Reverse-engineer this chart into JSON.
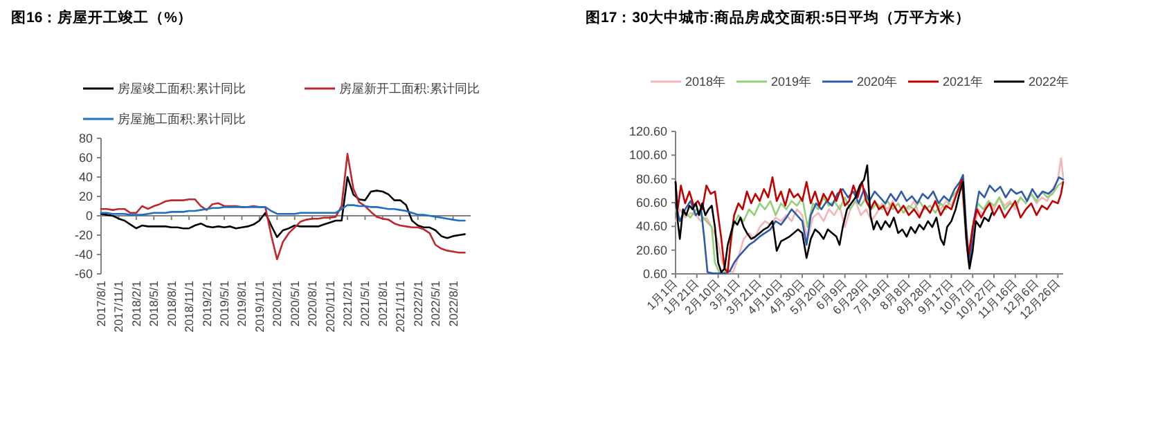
{
  "chart_data": [
    {
      "type": "line",
      "title": "图16：房屋开工竣工（%）",
      "legend": "top",
      "categories": [
        "2017/8/1",
        null,
        null,
        "2017/11/1",
        null,
        null,
        "2018/2/1",
        null,
        null,
        "2018/5/1",
        null,
        null,
        "2018/8/1",
        null,
        null,
        "2018/11/1",
        null,
        null,
        "2019/2/1",
        null,
        null,
        "2019/5/1",
        null,
        null,
        "2019/8/1",
        null,
        null,
        "2019/11/1",
        null,
        null,
        "2020/2/1",
        null,
        null,
        "2020/5/1",
        null,
        null,
        "2020/8/1",
        null,
        null,
        "2020/11/1",
        null,
        null,
        "2021/2/1",
        null,
        null,
        "2021/5/1",
        null,
        null,
        "2021/8/1",
        null,
        null,
        "2021/11/1",
        null,
        null,
        "2022/2/1",
        null,
        null,
        "2022/5/1",
        null,
        null,
        "2022/8/1",
        null,
        null
      ],
      "ylim": [
        -60,
        80
      ],
      "yticks": [
        -60,
        -40,
        -20,
        0,
        20,
        40,
        60,
        80
      ],
      "series": [
        {
          "name": "房屋竣工面积:累计同比",
          "color": "#000000",
          "values": [
            2,
            1,
            0,
            -3,
            -5,
            -9,
            -13,
            -10,
            -11,
            -11,
            -11,
            -11,
            -12,
            -12,
            -13,
            -13,
            -10,
            -8,
            -11,
            -12,
            -11,
            -12,
            -11,
            -13,
            -12,
            -11,
            -9,
            -5,
            3,
            -10,
            -22,
            -15,
            -13,
            -10,
            -11,
            -11,
            -11,
            -11,
            -9,
            -7,
            -5,
            -5,
            40,
            22,
            17,
            16,
            25,
            26,
            25,
            22,
            16,
            16,
            11,
            -5,
            -10,
            -12,
            -12,
            -15,
            -21,
            -23,
            -21,
            -20,
            -19
          ]
        },
        {
          "name": "房屋新开工面积:累计同比",
          "color": "#c0262d",
          "values": [
            7,
            7,
            6,
            7,
            7,
            3,
            3,
            10,
            7,
            10,
            12,
            15,
            16,
            16,
            16,
            17,
            17,
            10,
            6,
            12,
            13,
            10,
            10,
            10,
            9,
            9,
            10,
            9,
            9,
            -20,
            -45,
            -27,
            -18,
            -12,
            -6,
            -4,
            -3,
            -3,
            -2,
            -2,
            -1,
            10,
            64,
            28,
            14,
            10,
            4,
            -1,
            -3,
            -4,
            -8,
            -10,
            -11,
            -12,
            -12,
            -14,
            -18,
            -30,
            -34,
            -36,
            -37,
            -38,
            -38
          ]
        },
        {
          "name": "房屋施工面积:累计同比",
          "color": "#1f6fc0",
          "values": [
            3,
            3,
            2,
            2,
            2,
            1,
            1,
            1,
            2,
            3,
            3,
            3,
            4,
            4,
            4,
            5,
            5,
            6,
            7,
            8,
            8,
            9,
            9,
            9,
            9,
            9,
            9,
            9,
            9,
            5,
            2,
            2,
            2,
            2,
            3,
            3,
            3,
            3,
            3,
            3,
            3,
            7,
            11,
            11,
            10,
            10,
            9,
            9,
            8,
            7,
            7,
            6,
            5,
            3,
            1,
            1,
            0,
            -1,
            -2,
            -3,
            -4,
            -5,
            -5
          ]
        }
      ]
    },
    {
      "type": "line",
      "title": "图17：30大中城市:商品房成交面积:5日平均（万平方米）",
      "legend": "top",
      "xlim": [
        "--01-01",
        "--12-31"
      ],
      "xticks": [
        {
          "value": "--01-01",
          "label": "1月1日"
        },
        {
          "value": "--01-21",
          "label": "1月21日"
        },
        {
          "value": "--02-10",
          "label": "2月10日"
        },
        {
          "value": "--03-01",
          "label": "3月1日"
        },
        {
          "value": "--03-21",
          "label": "3月21日"
        },
        {
          "value": "--04-10",
          "label": "4月10日"
        },
        {
          "value": "--04-30",
          "label": "4月30日"
        },
        {
          "value": "--05-20",
          "label": "5月20日"
        },
        {
          "value": "--06-09",
          "label": "6月9日"
        },
        {
          "value": "--06-29",
          "label": "6月29日"
        },
        {
          "value": "--07-19",
          "label": "7月19日"
        },
        {
          "value": "--08-08",
          "label": "8月8日"
        },
        {
          "value": "--08-28",
          "label": "8月28日"
        },
        {
          "value": "--09-17",
          "label": "9月17日"
        },
        {
          "value": "--10-07",
          "label": "10月7日"
        },
        {
          "value": "--10-27",
          "label": "10月27日"
        },
        {
          "value": "--11-16",
          "label": "11月16日"
        },
        {
          "value": "--12-06",
          "label": "12月6日"
        },
        {
          "value": "--12-26",
          "label": "12月26日"
        }
      ],
      "ylim": [
        0.6,
        120.6
      ],
      "yticks": [
        {
          "value": 0.6,
          "label": "0.60"
        },
        {
          "value": 20.6,
          "label": "20.60"
        },
        {
          "value": 40.6,
          "label": "40.60"
        },
        {
          "value": 60.6,
          "label": "60.60"
        },
        {
          "value": 80.6,
          "label": "80.60"
        },
        {
          "value": 100.6,
          "label": "100.60"
        },
        {
          "value": 120.6,
          "label": "120.60"
        }
      ],
      "series": [
        {
          "name": "2018年",
          "color": "#f4b6b8",
          "x": [
            "--01-01",
            "--01-05",
            "--01-10",
            "--01-15",
            "--01-20",
            "--01-25",
            "--01-30",
            "--02-04",
            "--02-09",
            "--02-14",
            "--02-19",
            "--02-24",
            "--03-01",
            "--03-06",
            "--03-11",
            "--03-16",
            "--03-21",
            "--03-26",
            "--03-31",
            "--04-05",
            "--04-10",
            "--04-15",
            "--04-20",
            "--04-25",
            "--04-30",
            "--05-05",
            "--05-10",
            "--05-15",
            "--05-20",
            "--05-25",
            "--05-30",
            "--06-04",
            "--06-09",
            "--06-14",
            "--06-19",
            "--06-24",
            "--06-29",
            "--07-04",
            "--07-09",
            "--07-14",
            "--07-19",
            "--07-24",
            "--07-29",
            "--08-03",
            "--08-08",
            "--08-13",
            "--08-18",
            "--08-23",
            "--08-28",
            "--09-02",
            "--09-07",
            "--09-12",
            "--09-17",
            "--09-22",
            "--09-27",
            "--09-30",
            "--10-03",
            "--10-07",
            "--10-12",
            "--10-17",
            "--10-22",
            "--10-27",
            "--11-01",
            "--11-06",
            "--11-11",
            "--11-16",
            "--11-21",
            "--11-26",
            "--12-01",
            "--12-06",
            "--12-11",
            "--12-16",
            "--12-21",
            "--12-26",
            "--12-29",
            "--12-31"
          ],
          "values": [
            45,
            55,
            48,
            52,
            50,
            45,
            48,
            40,
            30,
            10,
            3,
            2,
            15,
            30,
            35,
            30,
            40,
            45,
            42,
            48,
            45,
            50,
            45,
            55,
            50,
            30,
            48,
            52,
            45,
            55,
            50,
            58,
            40,
            55,
            62,
            50,
            55,
            45,
            52,
            60,
            55,
            62,
            52,
            58,
            55,
            62,
            50,
            58,
            52,
            60,
            55,
            62,
            58,
            70,
            75,
            40,
            10,
            30,
            55,
            50,
            62,
            55,
            65,
            58,
            62,
            55,
            65,
            60,
            68,
            60,
            65,
            62,
            72,
            80,
            98,
            82
          ]
        },
        {
          "name": "2019年",
          "color": "#92d07a",
          "x": [
            "--01-01",
            "--01-05",
            "--01-10",
            "--01-15",
            "--01-20",
            "--01-25",
            "--01-30",
            "--02-04",
            "--02-07",
            "--02-11",
            "--02-15",
            "--02-19",
            "--02-24",
            "--03-01",
            "--03-06",
            "--03-11",
            "--03-16",
            "--03-21",
            "--03-26",
            "--03-31",
            "--04-05",
            "--04-10",
            "--04-15",
            "--04-20",
            "--04-25",
            "--04-30",
            "--05-05",
            "--05-10",
            "--05-15",
            "--05-20",
            "--05-25",
            "--05-30",
            "--06-04",
            "--06-09",
            "--06-14",
            "--06-19",
            "--06-24",
            "--06-29",
            "--07-04",
            "--07-09",
            "--07-14",
            "--07-19",
            "--07-24",
            "--07-29",
            "--08-03",
            "--08-08",
            "--08-13",
            "--08-18",
            "--08-23",
            "--08-28",
            "--09-02",
            "--09-07",
            "--09-12",
            "--09-17",
            "--09-22",
            "--09-27",
            "--09-30",
            "--10-03",
            "--10-07",
            "--10-12",
            "--10-17",
            "--10-22",
            "--10-27",
            "--11-01",
            "--11-06",
            "--11-11",
            "--11-16",
            "--11-21",
            "--11-26",
            "--12-01",
            "--12-06",
            "--12-11",
            "--12-16",
            "--12-21",
            "--12-26",
            "--12-31"
          ],
          "values": [
            55,
            45,
            52,
            48,
            55,
            50,
            45,
            40,
            10,
            2,
            1,
            5,
            40,
            50,
            45,
            55,
            50,
            60,
            55,
            62,
            50,
            60,
            55,
            62,
            58,
            65,
            40,
            60,
            55,
            65,
            58,
            62,
            55,
            65,
            55,
            62,
            58,
            65,
            55,
            60,
            55,
            62,
            55,
            60,
            52,
            58,
            55,
            62,
            55,
            58,
            52,
            60,
            55,
            65,
            70,
            78,
            40,
            12,
            40,
            60,
            55,
            62,
            58,
            65,
            55,
            60,
            58,
            65,
            60,
            68,
            62,
            70,
            65,
            68,
            75,
            78
          ]
        },
        {
          "name": "2020年",
          "color": "#2e5aa8",
          "x": [
            "--01-01",
            "--01-05",
            "--01-10",
            "--01-15",
            "--01-20",
            "--01-25",
            "--01-28",
            "--01-31",
            "--02-05",
            "--02-11",
            "--02-17",
            "--02-21",
            "--02-25",
            "--03-01",
            "--03-06",
            "--03-11",
            "--03-16",
            "--03-21",
            "--03-26",
            "--03-31",
            "--04-05",
            "--04-10",
            "--04-15",
            "--04-20",
            "--04-25",
            "--04-30",
            "--05-04",
            "--05-08",
            "--05-13",
            "--05-18",
            "--05-23",
            "--05-28",
            "--06-02",
            "--06-07",
            "--06-12",
            "--06-17",
            "--06-22",
            "--06-27",
            "--07-02",
            "--07-07",
            "--07-12",
            "--07-17",
            "--07-22",
            "--07-27",
            "--08-01",
            "--08-06",
            "--08-11",
            "--08-16",
            "--08-21",
            "--08-26",
            "--08-31",
            "--09-05",
            "--09-10",
            "--09-15",
            "--09-20",
            "--09-25",
            "--09-28",
            "--10-01",
            "--10-04",
            "--10-08",
            "--10-13",
            "--10-18",
            "--10-23",
            "--10-28",
            "--11-02",
            "--11-07",
            "--11-12",
            "--11-17",
            "--11-22",
            "--11-27",
            "--12-02",
            "--12-07",
            "--12-12",
            "--12-17",
            "--12-22",
            "--12-27",
            "--12-31"
          ],
          "values": [
            60,
            45,
            55,
            62,
            50,
            55,
            30,
            2,
            1,
            1,
            1,
            3,
            10,
            15,
            20,
            25,
            28,
            32,
            35,
            38,
            45,
            42,
            48,
            55,
            50,
            45,
            25,
            50,
            60,
            55,
            62,
            58,
            68,
            72,
            65,
            70,
            60,
            72,
            62,
            70,
            65,
            60,
            68,
            62,
            70,
            62,
            66,
            60,
            68,
            64,
            70,
            60,
            66,
            62,
            72,
            78,
            84,
            40,
            8,
            45,
            70,
            65,
            75,
            70,
            74,
            65,
            72,
            68,
            70,
            62,
            72,
            65,
            70,
            68,
            72,
            82,
            80
          ]
        },
        {
          "name": "2021年",
          "color": "#c00000",
          "x": [
            "--01-01",
            "--01-03",
            "--01-06",
            "--01-10",
            "--01-14",
            "--01-18",
            "--01-22",
            "--01-26",
            "--01-30",
            "--02-03",
            "--02-07",
            "--02-10",
            "--02-13",
            "--02-16",
            "--02-19",
            "--02-22",
            "--02-25",
            "--03-01",
            "--03-05",
            "--03-09",
            "--03-13",
            "--03-17",
            "--03-21",
            "--03-25",
            "--03-29",
            "--04-02",
            "--04-06",
            "--04-10",
            "--04-14",
            "--04-18",
            "--04-22",
            "--04-26",
            "--04-30",
            "--05-04",
            "--05-08",
            "--05-12",
            "--05-16",
            "--05-20",
            "--05-24",
            "--05-28",
            "--06-01",
            "--06-05",
            "--06-09",
            "--06-13",
            "--06-17",
            "--06-21",
            "--06-25",
            "--06-29",
            "--07-03",
            "--07-07",
            "--07-11",
            "--07-15",
            "--07-19",
            "--07-24",
            "--07-29",
            "--08-03",
            "--08-08",
            "--08-13",
            "--08-18",
            "--08-23",
            "--08-28",
            "--09-02",
            "--09-07",
            "--09-12",
            "--09-17",
            "--09-22",
            "--09-27",
            "--09-30",
            "--10-03",
            "--10-07",
            "--10-11",
            "--10-15",
            "--10-19",
            "--10-23",
            "--10-27",
            "--11-01",
            "--11-06",
            "--11-11",
            "--11-16",
            "--11-21",
            "--11-26",
            "--12-01",
            "--12-06",
            "--12-11",
            "--12-16",
            "--12-21",
            "--12-26",
            "--12-29",
            "--12-31"
          ],
          "values": [
            78,
            55,
            75,
            60,
            70,
            58,
            62,
            55,
            75,
            68,
            70,
            50,
            30,
            5,
            2,
            30,
            50,
            60,
            55,
            70,
            60,
            68,
            62,
            72,
            65,
            82,
            62,
            70,
            58,
            72,
            65,
            68,
            62,
            78,
            60,
            70,
            58,
            68,
            62,
            70,
            62,
            72,
            58,
            62,
            75,
            65,
            78,
            62,
            55,
            62,
            55,
            58,
            50,
            60,
            52,
            58,
            50,
            55,
            48,
            58,
            52,
            62,
            50,
            58,
            55,
            68,
            80,
            45,
            15,
            40,
            55,
            48,
            55,
            60,
            50,
            58,
            48,
            55,
            62,
            48,
            55,
            60,
            50,
            58,
            55,
            62,
            60,
            68,
            78
          ]
        },
        {
          "name": "2022年",
          "color": "#000000",
          "x": [
            "--01-01",
            "--01-03",
            "--01-05",
            "--01-08",
            "--01-11",
            "--01-14",
            "--01-17",
            "--01-20",
            "--01-23",
            "--01-26",
            "--01-29",
            "--02-01",
            "--02-04",
            "--02-07",
            "--02-10",
            "--02-13",
            "--02-16",
            "--02-19",
            "--02-22",
            "--02-25",
            "--02-28",
            "--03-03",
            "--03-06",
            "--03-09",
            "--03-13",
            "--03-17",
            "--03-21",
            "--03-25",
            "--03-29",
            "--04-02",
            "--04-06",
            "--04-10",
            "--04-14",
            "--04-18",
            "--04-22",
            "--04-26",
            "--04-30",
            "--05-04",
            "--05-08",
            "--05-12",
            "--05-16",
            "--05-20",
            "--05-24",
            "--05-28",
            "--06-01",
            "--06-04",
            "--06-07",
            "--06-11",
            "--06-15",
            "--06-19",
            "--06-23",
            "--06-27",
            "--06-30",
            "--07-03",
            "--07-06",
            "--07-09",
            "--07-13",
            "--07-17",
            "--07-21",
            "--07-25",
            "--07-29",
            "--08-02",
            "--08-06",
            "--08-10",
            "--08-14",
            "--08-18",
            "--08-22",
            "--08-26",
            "--08-30",
            "--09-03",
            "--09-07",
            "--09-10",
            "--09-13",
            "--09-17",
            "--09-21",
            "--09-25",
            "--09-28",
            "--10-01",
            "--10-04",
            "--10-07",
            "--10-10",
            "--10-14",
            "--10-18",
            "--10-22",
            "--10-25"
          ],
          "values": [
            78,
            45,
            30,
            55,
            50,
            58,
            55,
            60,
            50,
            60,
            50,
            55,
            58,
            40,
            10,
            2,
            5,
            25,
            35,
            45,
            42,
            48,
            40,
            35,
            30,
            32,
            35,
            38,
            40,
            45,
            20,
            28,
            30,
            32,
            35,
            38,
            35,
            14,
            30,
            38,
            35,
            30,
            38,
            35,
            32,
            25,
            40,
            55,
            60,
            65,
            75,
            80,
            92,
            50,
            38,
            45,
            38,
            45,
            40,
            48,
            35,
            38,
            32,
            40,
            35,
            42,
            38,
            45,
            40,
            48,
            30,
            25,
            40,
            45,
            55,
            70,
            78,
            30,
            5,
            20,
            45,
            40,
            48,
            45,
            52
          ]
        }
      ]
    }
  ]
}
